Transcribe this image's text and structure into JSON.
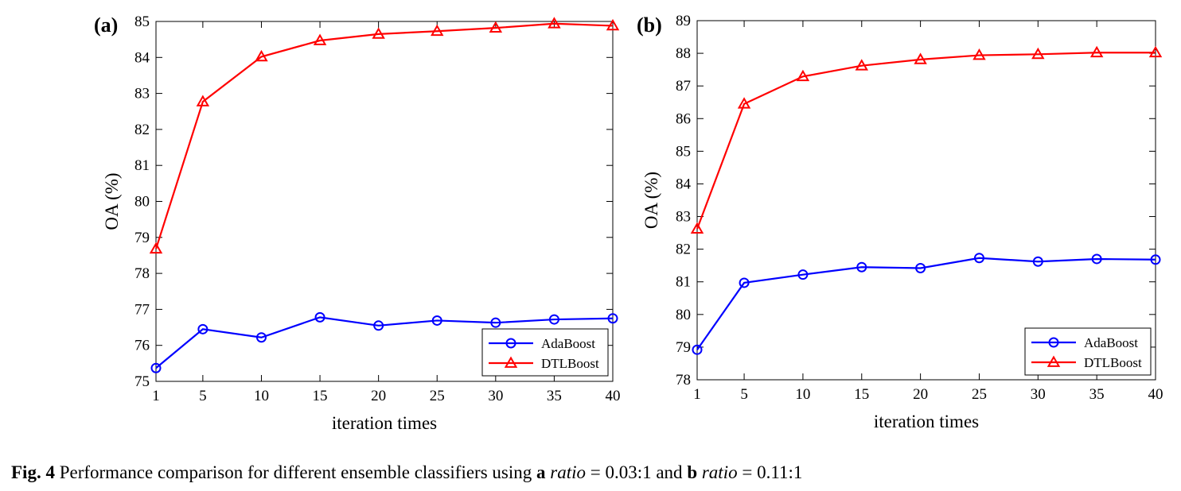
{
  "chart_data": [
    {
      "panel_label": "(a)",
      "type": "line",
      "xlabel": "iteration times",
      "ylabel": "OA (%)",
      "x": [
        1,
        5,
        10,
        15,
        20,
        25,
        30,
        35,
        40
      ],
      "xlim": [
        1,
        40
      ],
      "ylim": [
        75,
        85
      ],
      "yticks": [
        75,
        76,
        77,
        78,
        79,
        80,
        81,
        82,
        83,
        84,
        85
      ],
      "grid": false,
      "legend_position": "bottom-right",
      "series": [
        {
          "name": "AdaBoost",
          "color": "#0000ff",
          "marker": "circle",
          "values": [
            75.37,
            76.45,
            76.22,
            76.78,
            76.55,
            76.69,
            76.63,
            76.72,
            76.75
          ]
        },
        {
          "name": "DTLBoost",
          "color": "#ff0000",
          "marker": "triangle",
          "values": [
            78.68,
            82.77,
            84.02,
            84.47,
            84.65,
            84.73,
            84.82,
            84.94,
            84.88
          ]
        }
      ]
    },
    {
      "panel_label": "(b)",
      "type": "line",
      "xlabel": "iteration times",
      "ylabel": "OA (%)",
      "x": [
        1,
        5,
        10,
        15,
        20,
        25,
        30,
        35,
        40
      ],
      "xlim": [
        1,
        40
      ],
      "ylim": [
        78,
        89
      ],
      "yticks": [
        78,
        79,
        80,
        81,
        82,
        83,
        84,
        85,
        86,
        87,
        88,
        89
      ],
      "grid": false,
      "legend_position": "bottom-right",
      "series": [
        {
          "name": "AdaBoost",
          "color": "#0000ff",
          "marker": "circle",
          "values": [
            78.92,
            80.97,
            81.22,
            81.45,
            81.42,
            81.73,
            81.62,
            81.7,
            81.68
          ]
        },
        {
          "name": "DTLBoost",
          "color": "#ff0000",
          "marker": "triangle",
          "values": [
            82.62,
            86.45,
            87.29,
            87.62,
            87.81,
            87.94,
            87.97,
            88.02,
            88.02
          ]
        }
      ]
    }
  ],
  "caption": {
    "fig_label": "Fig. 4",
    "text1": " Performance comparison for different ensemble classifiers using ",
    "a_label": "a",
    "ratio_word_a": "ratio",
    "eq_a": " = 0.03:1 and ",
    "b_label": "b",
    "ratio_word_b": "ratio",
    "eq_b": " = 0.11:1"
  }
}
